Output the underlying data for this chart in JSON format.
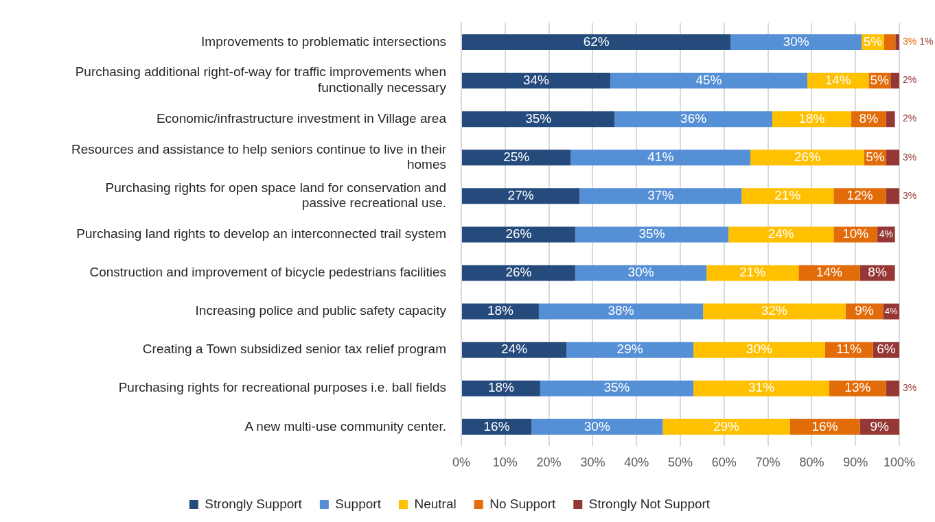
{
  "chart_data": {
    "type": "bar",
    "orientation": "horizontal",
    "stacked": true,
    "categories": [
      "Improvements to problematic intersections",
      "Purchasing additional right-of-way for traffic improvements when functionally necessary",
      "Economic/infrastructure investment in Village area",
      "Resources and assistance to help seniors continue to live in their homes",
      "Purchasing rights for open space land for conservation and passive recreational use.",
      "Purchasing land rights to develop an interconnected trail system",
      "Construction and improvement of bicycle pedestrians facilities",
      "Increasing police and public safety capacity",
      "Creating a Town subsidized senior tax relief program",
      "Purchasing rights for recreational purposes i.e. ball fields",
      "A new multi-use community center."
    ],
    "series": [
      {
        "name": "Strongly Support",
        "color": "#254a7c",
        "values": [
          61.5,
          34,
          35,
          25,
          27,
          26,
          26,
          17.7,
          24,
          18,
          16
        ],
        "value_labels": [
          "62%",
          "34%",
          "35%",
          "25%",
          "27%",
          "26%",
          "26%",
          "18%",
          "24%",
          "18%",
          "16%"
        ]
      },
      {
        "name": "Support",
        "color": "#558fd5",
        "values": [
          29.9,
          45,
          36,
          41,
          37,
          35,
          30,
          37.5,
          29,
          35,
          30
        ],
        "value_labels": [
          "30%",
          "45%",
          "36%",
          "41%",
          "37%",
          "35%",
          "30%",
          "38%",
          "29%",
          "35%",
          "30%"
        ]
      },
      {
        "name": "Neutral",
        "color": "#ffc000",
        "values": [
          5.1,
          14,
          18,
          26,
          21,
          24,
          21,
          32.5,
          30,
          31,
          29
        ],
        "value_labels": [
          "5%",
          "14%",
          "18%",
          "26%",
          "21%",
          "24%",
          "21%",
          "32%",
          "30%",
          "31%",
          "29%"
        ]
      },
      {
        "name": "No Support",
        "color": "#e36c0a",
        "values": [
          2.6,
          5,
          8,
          5,
          12,
          10,
          14,
          8.6,
          11,
          13,
          16
        ],
        "value_labels": [
          "3%",
          "5%",
          "8%",
          "5%",
          "12%",
          "10%",
          "14%",
          "9%",
          "11%",
          "13%",
          "16%"
        ]
      },
      {
        "name": "Strongly Not Support",
        "color": "#953735",
        "values": [
          0.9,
          2,
          2,
          3,
          3,
          4,
          8,
          3.7,
          6,
          3,
          9
        ],
        "value_labels": [
          "1%",
          "2%",
          "2%",
          "3%",
          "3%",
          "4%",
          "8%",
          "4%",
          "6%",
          "3%",
          "9%"
        ]
      }
    ],
    "xlim": [
      0,
      100
    ],
    "xticks": [
      {
        "value": 0,
        "label": "0%"
      },
      {
        "value": 10,
        "label": "10%"
      },
      {
        "value": 20,
        "label": "20%"
      },
      {
        "value": 30,
        "label": "30%"
      },
      {
        "value": 40,
        "label": "40%"
      },
      {
        "value": 50,
        "label": "50%"
      },
      {
        "value": 60,
        "label": "60%"
      },
      {
        "value": 70,
        "label": "70%"
      },
      {
        "value": 80,
        "label": "80%"
      },
      {
        "value": 90,
        "label": "90%"
      },
      {
        "value": 100,
        "label": "100%"
      }
    ],
    "grid": "x",
    "legend": "bottom"
  }
}
